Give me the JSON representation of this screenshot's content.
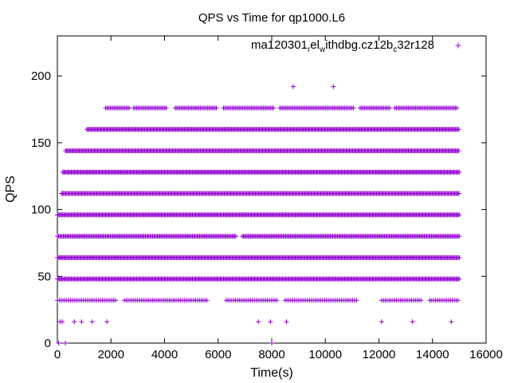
{
  "chart_data": {
    "type": "scatter",
    "title": "QPS vs Time for qp1000.L6",
    "xlabel": "Time(s)",
    "ylabel": "QPS",
    "xlim": [
      0,
      16000
    ],
    "ylim": [
      0,
      230
    ],
    "xticks": [
      0,
      2000,
      4000,
      6000,
      8000,
      10000,
      12000,
      14000,
      16000
    ],
    "yticks": [
      0,
      50,
      100,
      150,
      200
    ],
    "grid": false,
    "marker": "+",
    "color": "#9400d3",
    "legend_position": "top-right",
    "series": [
      {
        "name": "ma120301_rel_withdbg.cz12b_c32r128",
        "legend_text": [
          "ma120301",
          "r",
          "el",
          "w",
          "ithdbg.cz12b",
          "c",
          "32r128"
        ],
        "bands": [
          {
            "y": 176,
            "ranges": [
              [
                1800,
                2700
              ],
              [
                2850,
                4100
              ],
              [
                4400,
                5950
              ],
              [
                6200,
                8100
              ],
              [
                8300,
                11100
              ],
              [
                11300,
                12400
              ],
              [
                12600,
                14950
              ]
            ],
            "spacing": 55
          },
          {
            "y": 160,
            "ranges": [
              [
                1100,
                15000
              ]
            ],
            "spacing": 40
          },
          {
            "y": 144,
            "ranges": [
              [
                300,
                15000
              ]
            ],
            "spacing": 40
          },
          {
            "y": 128,
            "ranges": [
              [
                200,
                15000
              ]
            ],
            "spacing": 40
          },
          {
            "y": 112,
            "ranges": [
              [
                150,
                15000
              ]
            ],
            "spacing": 40
          },
          {
            "y": 96,
            "ranges": [
              [
                0,
                15000
              ]
            ],
            "spacing": 40
          },
          {
            "y": 80,
            "ranges": [
              [
                0,
                6700
              ],
              [
                6900,
                15000
              ]
            ],
            "spacing": 45
          },
          {
            "y": 64,
            "ranges": [
              [
                0,
                15000
              ]
            ],
            "spacing": 40
          },
          {
            "y": 48,
            "ranges": [
              [
                0,
                15000
              ]
            ],
            "spacing": 40
          },
          {
            "y": 32,
            "ranges": [
              [
                0,
                2200
              ],
              [
                2500,
                5600
              ],
              [
                6300,
                8200
              ],
              [
                8500,
                11200
              ],
              [
                12100,
                13600
              ],
              [
                13900,
                15000
              ]
            ],
            "spacing": 70
          }
        ],
        "points": [
          [
            8800,
            192
          ],
          [
            10300,
            192
          ],
          [
            100,
            16
          ],
          [
            180,
            16
          ],
          [
            630,
            16
          ],
          [
            900,
            16
          ],
          [
            1300,
            16
          ],
          [
            1850,
            16
          ],
          [
            7500,
            16
          ],
          [
            7950,
            16
          ],
          [
            8550,
            16
          ],
          [
            12100,
            16
          ],
          [
            13250,
            16
          ],
          [
            14700,
            16
          ],
          [
            50,
            0
          ],
          [
            300,
            0
          ],
          [
            8000,
            0
          ]
        ]
      }
    ]
  }
}
